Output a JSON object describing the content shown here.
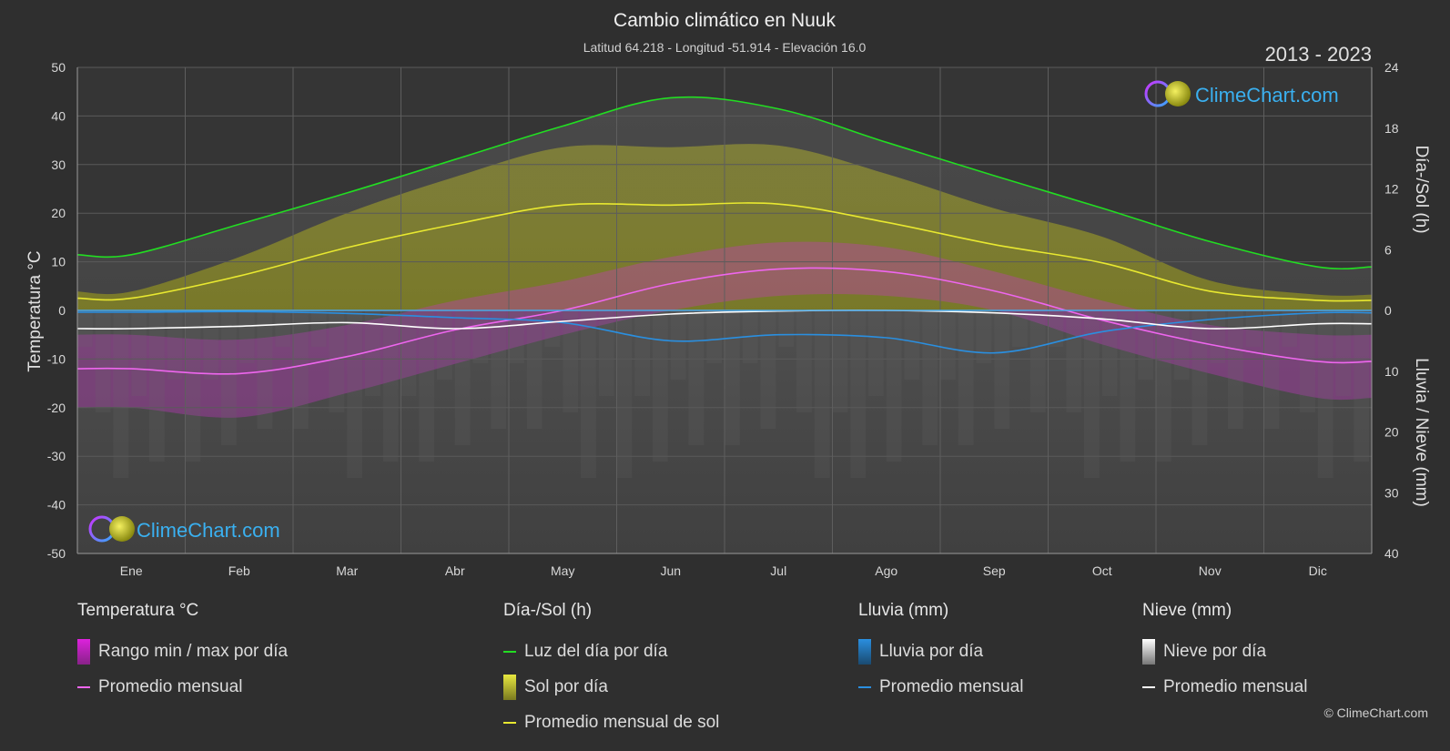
{
  "title": "Cambio climático en Nuuk",
  "subtitle": "Latitud 64.218 - Longitud -51.914 - Elevación 16.0",
  "period": "2013 - 2023",
  "brand": "ClimeChart.com",
  "copyright": "© ClimeChart.com",
  "chart_data": {
    "type": "line",
    "months": [
      "Ene",
      "Feb",
      "Mar",
      "Abr",
      "May",
      "Jun",
      "Jul",
      "Ago",
      "Sep",
      "Oct",
      "Nov",
      "Dic"
    ],
    "left_axis": {
      "label": "Temperatura °C",
      "min": -50,
      "max": 50,
      "ticks": [
        "50",
        "40",
        "30",
        "20",
        "10",
        "0",
        "-10",
        "-20",
        "-30",
        "-40",
        "-50"
      ]
    },
    "right_axis_top": {
      "label": "Día-/Sol (h)",
      "min": 0,
      "max": 24,
      "ticks": [
        "24",
        "18",
        "12",
        "6",
        "0"
      ]
    },
    "right_axis_bottom": {
      "label": "Lluvia / Nieve (mm)",
      "min": 0,
      "max": 40,
      "ticks": [
        "10",
        "20",
        "30",
        "40"
      ]
    },
    "series": [
      {
        "name": "Luz del día por día",
        "unit": "h",
        "color": "#22dd22",
        "values": [
          5.5,
          8.5,
          11.6,
          14.9,
          18.2,
          21.0,
          19.9,
          16.6,
          13.3,
          10.1,
          6.8,
          4.3
        ]
      },
      {
        "name": "Promedio mensual de sol",
        "unit": "h",
        "color": "#e8e830",
        "values": [
          1.2,
          3.4,
          6.2,
          8.5,
          10.4,
          10.4,
          10.5,
          8.7,
          6.5,
          4.7,
          1.9,
          1.0
        ]
      },
      {
        "name": "Promedio mensual temperatura",
        "unit": "°C",
        "color": "#ee66ee",
        "values": [
          -12.0,
          -13.0,
          -9.5,
          -4.0,
          0.0,
          5.5,
          8.5,
          8.0,
          4.0,
          -2.0,
          -7.0,
          -10.5
        ]
      },
      {
        "name": "Promedio mensual lluvia",
        "unit": "mm",
        "color": "#2a8fe0",
        "values": [
          0.3,
          0.2,
          0.5,
          1.2,
          2.0,
          5.0,
          4.0,
          4.5,
          7.0,
          3.5,
          1.5,
          0.4
        ]
      },
      {
        "name": "Promedio mensual nieve",
        "unit": "mm",
        "color": "#ffffff",
        "values": [
          3.0,
          2.6,
          2.0,
          3.0,
          1.8,
          0.6,
          0.1,
          0.0,
          0.4,
          1.4,
          3.0,
          2.2
        ]
      }
    ],
    "temperature_range": {
      "name": "Rango min / max por día",
      "min": [
        -20,
        -22,
        -17,
        -11,
        -5,
        0,
        3,
        3,
        0,
        -7,
        -13,
        -18
      ],
      "max": [
        -5,
        -6,
        -3,
        2,
        6,
        11,
        14,
        13,
        8,
        2,
        -3,
        -5
      ]
    }
  },
  "legend": {
    "groups": [
      {
        "title": "Temperatura °C",
        "items": [
          {
            "type": "box",
            "label": "Rango min / max por día",
            "color": "#dd22dd"
          },
          {
            "type": "line",
            "label": "Promedio mensual",
            "color": "#ee66ee"
          }
        ]
      },
      {
        "title": "Día-/Sol (h)",
        "items": [
          {
            "type": "line",
            "label": "Luz del día por día",
            "color": "#22dd22"
          },
          {
            "type": "box",
            "label": "Sol por día",
            "color": "#c8c82a"
          },
          {
            "type": "line",
            "label": "Promedio mensual de sol",
            "color": "#e8e830"
          }
        ]
      },
      {
        "title": "Lluvia (mm)",
        "items": [
          {
            "type": "box",
            "label": "Lluvia por día",
            "color": "#2a8fe0"
          },
          {
            "type": "line",
            "label": "Promedio mensual",
            "color": "#2a8fe0"
          }
        ]
      },
      {
        "title": "Nieve (mm)",
        "items": [
          {
            "type": "box",
            "label": "Nieve por día",
            "color": "#dddddd"
          },
          {
            "type": "line",
            "label": "Promedio mensual",
            "color": "#ffffff"
          }
        ]
      }
    ]
  }
}
